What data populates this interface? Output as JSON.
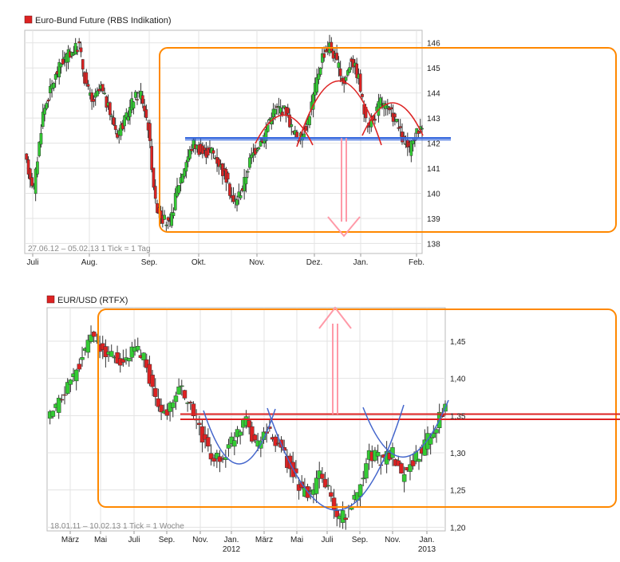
{
  "chart_data": [
    {
      "type": "candlestick",
      "title": "Euro-Bund Future (RBS Indikation)",
      "legend_color": "#dd2222",
      "footer": "27.06.12 – 05.02.13   1 Tick = 1 Tag",
      "ylim": [
        137.6,
        146.5
      ],
      "y_ticks": [
        138,
        139,
        140,
        141,
        142,
        143,
        144,
        145,
        146
      ],
      "x_months": [
        "Juli",
        "Aug.",
        "Sep.",
        "Okt.",
        "Nov.",
        "Dez.",
        "Jan.",
        "Feb."
      ],
      "grid": true,
      "close_path": [
        [
          0,
          141.4
        ],
        [
          5,
          140.2
        ],
        [
          10,
          143.2
        ],
        [
          15,
          144.3
        ],
        [
          20,
          145.2
        ],
        [
          25,
          145.6
        ],
        [
          30,
          145.9
        ],
        [
          33,
          144.6
        ],
        [
          37,
          143.6
        ],
        [
          42,
          144.2
        ],
        [
          47,
          143.2
        ],
        [
          51,
          142.4
        ],
        [
          56,
          143.0
        ],
        [
          60,
          143.8
        ],
        [
          64,
          144.0
        ],
        [
          68,
          142.7
        ],
        [
          72,
          139.6
        ],
        [
          76,
          139.0
        ],
        [
          80,
          138.7
        ],
        [
          84,
          140.2
        ],
        [
          89,
          141.3
        ],
        [
          93,
          142.0
        ],
        [
          98,
          141.6
        ],
        [
          103,
          141.7
        ],
        [
          107,
          141.2
        ],
        [
          111,
          140.6
        ],
        [
          115,
          139.6
        ],
        [
          120,
          140.2
        ],
        [
          124,
          141.3
        ],
        [
          128,
          141.9
        ],
        [
          132,
          142.3
        ],
        [
          136,
          143.2
        ],
        [
          140,
          143.4
        ],
        [
          144,
          143.3
        ],
        [
          148,
          142.4
        ],
        [
          152,
          142.2
        ],
        [
          156,
          142.9
        ],
        [
          160,
          144.2
        ],
        [
          164,
          145.5
        ],
        [
          168,
          145.9
        ],
        [
          172,
          145.2
        ],
        [
          176,
          144.4
        ],
        [
          180,
          145.4
        ],
        [
          184,
          144.6
        ],
        [
          188,
          142.8
        ],
        [
          192,
          142.9
        ],
        [
          196,
          143.7
        ],
        [
          200,
          143.3
        ],
        [
          204,
          143.0
        ],
        [
          208,
          142.2
        ],
        [
          212,
          141.7
        ],
        [
          216,
          142.4
        ],
        [
          219,
          142.8
        ]
      ],
      "annotations": {
        "box_color": "#ff8800",
        "neckline_value": 142.2,
        "neckline_color": "#3366dd",
        "pattern_color": "#dd2222",
        "arrow_color": "#ff9aa8",
        "target_value": 138.3
      }
    },
    {
      "type": "candlestick",
      "title": "EUR/USD (RTFX)",
      "legend_color": "#dd2222",
      "footer": "18.01.11 – 10.02.13   1 Tick = 1 Woche",
      "ylim": [
        1.195,
        1.495
      ],
      "y_ticks": [
        "1,20",
        "1,25",
        "1,30",
        "1,35",
        "1,40",
        "1,45"
      ],
      "x_months": [
        "März",
        "Mai",
        "Juli",
        "Sep.",
        "Nov.",
        "Jan.",
        "März",
        "Mai",
        "Juli",
        "Sep.",
        "Nov.",
        "Jan."
      ],
      "x_years": [
        "2012",
        "2013"
      ],
      "grid": true,
      "close_path": [
        [
          0,
          1.34
        ],
        [
          3,
          1.36
        ],
        [
          7,
          1.39
        ],
        [
          11,
          1.42
        ],
        [
          15,
          1.46
        ],
        [
          18,
          1.44
        ],
        [
          22,
          1.43
        ],
        [
          26,
          1.42
        ],
        [
          30,
          1.44
        ],
        [
          33,
          1.43
        ],
        [
          37,
          1.37
        ],
        [
          41,
          1.35
        ],
        [
          45,
          1.39
        ],
        [
          49,
          1.36
        ],
        [
          53,
          1.32
        ],
        [
          57,
          1.29
        ],
        [
          61,
          1.3
        ],
        [
          65,
          1.33
        ],
        [
          68,
          1.35
        ],
        [
          71,
          1.31
        ],
        [
          75,
          1.33
        ],
        [
          79,
          1.31
        ],
        [
          83,
          1.28
        ],
        [
          87,
          1.25
        ],
        [
          90,
          1.24
        ],
        [
          93,
          1.27
        ],
        [
          96,
          1.25
        ],
        [
          99,
          1.21
        ],
        [
          103,
          1.22
        ],
        [
          107,
          1.26
        ],
        [
          110,
          1.3
        ],
        [
          114,
          1.29
        ],
        [
          118,
          1.3
        ],
        [
          121,
          1.27
        ],
        [
          125,
          1.29
        ],
        [
          129,
          1.31
        ],
        [
          133,
          1.34
        ],
        [
          136,
          1.36
        ]
      ],
      "annotations": {
        "box_color": "#ff8800",
        "neckline_values": [
          1.345,
          1.352
        ],
        "neckline_color": "#dd2222",
        "pattern_color": "#4466cc",
        "arrow_color": "#ff9aa8",
        "target_value": 1.495
      }
    }
  ]
}
